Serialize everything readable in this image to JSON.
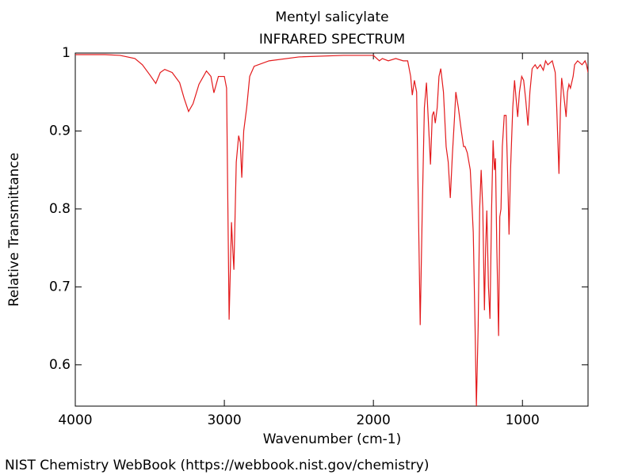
{
  "chart_data": {
    "type": "line",
    "title": "Mentyl salicylate",
    "subtitle": "INFRARED SPECTRUM",
    "x_label": "Wavenumber (cm-1)",
    "y_label": "Relative Transmittance",
    "source": "NIST Chemistry WebBook (https://webbook.nist.gov/chemistry)",
    "xlim": [
      4000,
      560
    ],
    "ylim": [
      0.547,
      1
    ],
    "xticks": [
      4000,
      3000,
      2000,
      1000
    ],
    "yticks": [
      0.6,
      0.7,
      0.8,
      0.9,
      1
    ],
    "x": [
      4000,
      3800,
      3700,
      3600,
      3550,
      3500,
      3460,
      3430,
      3400,
      3350,
      3300,
      3270,
      3240,
      3210,
      3170,
      3120,
      3090,
      3070,
      3040,
      3000,
      2985,
      2968,
      2960,
      2952,
      2944,
      2936,
      2920,
      2904,
      2893,
      2883,
      2870,
      2850,
      2830,
      2800,
      2700,
      2500,
      2200,
      2000,
      1960,
      1940,
      1900,
      1850,
      1800,
      1770,
      1750,
      1739,
      1725,
      1710,
      1698,
      1686,
      1672,
      1658,
      1644,
      1628,
      1617,
      1605,
      1595,
      1585,
      1572,
      1560,
      1548,
      1530,
      1512,
      1498,
      1484,
      1470,
      1455,
      1447,
      1430,
      1410,
      1395,
      1385,
      1370,
      1350,
      1330,
      1318,
      1309,
      1297,
      1287,
      1277,
      1266,
      1255,
      1247,
      1239,
      1228,
      1218,
      1207,
      1197,
      1188,
      1181,
      1172,
      1160,
      1152,
      1144,
      1135,
      1122,
      1110,
      1100,
      1090,
      1080,
      1065,
      1053,
      1042,
      1032,
      1020,
      1005,
      992,
      978,
      963,
      950,
      935,
      915,
      900,
      880,
      860,
      845,
      830,
      800,
      780,
      770,
      755,
      745,
      737,
      725,
      707,
      698,
      688,
      678,
      660,
      650,
      630,
      600,
      580,
      570,
      560
    ],
    "series": [
      {
        "name": "Relative Transmittance",
        "color": "#e31a1c",
        "values": [
          0.998,
          0.998,
          0.997,
          0.993,
          0.985,
          0.972,
          0.961,
          0.975,
          0.979,
          0.975,
          0.962,
          0.942,
          0.925,
          0.935,
          0.96,
          0.977,
          0.97,
          0.949,
          0.97,
          0.97,
          0.955,
          0.658,
          0.72,
          0.783,
          0.75,
          0.722,
          0.86,
          0.894,
          0.885,
          0.84,
          0.9,
          0.93,
          0.97,
          0.983,
          0.99,
          0.995,
          0.997,
          0.997,
          0.99,
          0.993,
          0.99,
          0.993,
          0.99,
          0.99,
          0.97,
          0.946,
          0.965,
          0.95,
          0.8,
          0.651,
          0.8,
          0.93,
          0.962,
          0.9,
          0.857,
          0.92,
          0.925,
          0.91,
          0.93,
          0.97,
          0.98,
          0.95,
          0.88,
          0.86,
          0.814,
          0.87,
          0.92,
          0.95,
          0.93,
          0.9,
          0.88,
          0.88,
          0.872,
          0.85,
          0.77,
          0.65,
          0.547,
          0.65,
          0.8,
          0.85,
          0.8,
          0.67,
          0.75,
          0.798,
          0.7,
          0.659,
          0.8,
          0.888,
          0.85,
          0.865,
          0.75,
          0.637,
          0.79,
          0.8,
          0.88,
          0.92,
          0.92,
          0.85,
          0.767,
          0.85,
          0.93,
          0.965,
          0.94,
          0.918,
          0.95,
          0.97,
          0.965,
          0.94,
          0.907,
          0.95,
          0.98,
          0.985,
          0.98,
          0.985,
          0.978,
          0.99,
          0.985,
          0.99,
          0.975,
          0.93,
          0.845,
          0.93,
          0.968,
          0.95,
          0.918,
          0.95,
          0.96,
          0.955,
          0.97,
          0.985,
          0.99,
          0.985,
          0.99,
          0.985,
          0.975
        ]
      }
    ]
  }
}
